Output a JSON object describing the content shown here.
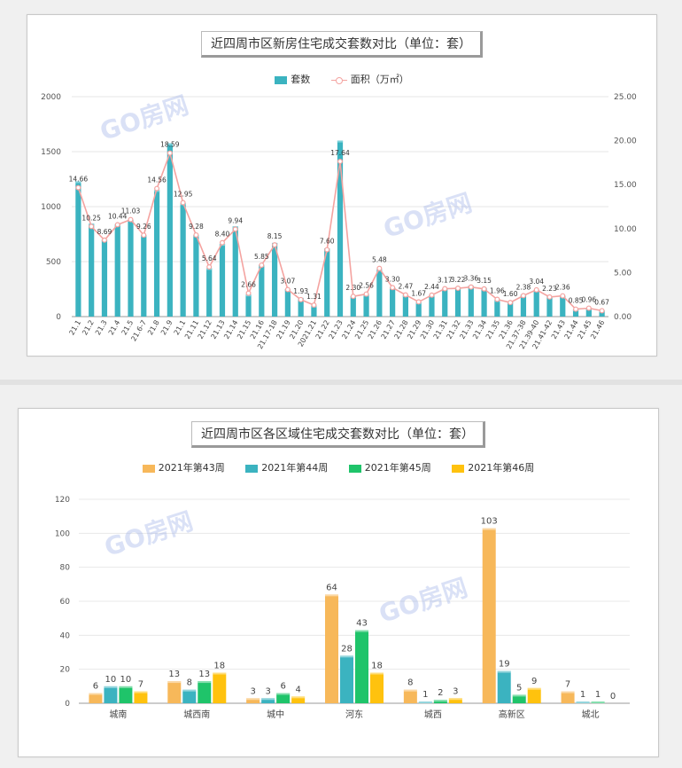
{
  "chart_data": [
    {
      "type": "bar",
      "title": "近四周市区新房住宅成交套数对比（单位：套）",
      "legend": [
        "套数",
        "面积（万㎡）"
      ],
      "categories": [
        "21.1",
        "21.2",
        "21.3",
        "21.4",
        "21.5",
        "21.6-7",
        "21.8",
        "21.9",
        "21.1",
        "21.11",
        "21.12",
        "21.13",
        "21.14",
        "21.15",
        "21.16",
        "21.17-18",
        "21.19",
        "21.20",
        "2021.21",
        "21.22",
        "21.23",
        "21.24",
        "21.25",
        "21.26",
        "21.27",
        "21.28",
        "21.29",
        "21.30",
        "21.31",
        "21.32",
        "21.33",
        "21.34",
        "21.35",
        "21.36",
        "21.37-38",
        "21.39-40",
        "21.41-42",
        "21.43",
        "21.44",
        "21.45",
        "21.46"
      ],
      "series": [
        {
          "name": "套数",
          "axis": "left",
          "kind": "bar",
          "values": [
            1230,
            845,
            700,
            840,
            880,
            740,
            1150,
            1575,
            1030,
            740,
            440,
            660,
            820,
            200,
            470,
            670,
            250,
            170,
            100,
            620,
            1600,
            185,
            200,
            430,
            265,
            195,
            130,
            195,
            255,
            265,
            280,
            260,
            150,
            135,
            200,
            240,
            185,
            190,
            65,
            75,
            55
          ]
        },
        {
          "name": "面积（万㎡）",
          "axis": "right",
          "kind": "line",
          "values": [
            14.66,
            10.25,
            8.69,
            10.44,
            11.03,
            9.26,
            14.56,
            18.59,
            12.95,
            9.28,
            5.64,
            8.4,
            9.94,
            2.66,
            5.85,
            8.15,
            3.07,
            1.93,
            1.31,
            7.6,
            17.64,
            2.3,
            2.56,
            5.48,
            3.3,
            2.47,
            1.67,
            2.44,
            3.17,
            3.22,
            3.36,
            3.15,
            1.96,
            1.6,
            2.38,
            3.04,
            2.23,
            2.36,
            0.85,
            0.96,
            0.67
          ]
        }
      ],
      "data_labels": [
        "14.66",
        "10.25",
        "8.69",
        "10.44",
        "11.03",
        "9.26",
        "14.56",
        "18.59",
        "12.95",
        "9.28",
        "5.64",
        "8.40",
        "9.94",
        "2.66",
        "5.85",
        "8.15",
        "3.07",
        "1.93",
        "1.31",
        "7.60",
        "17.64",
        "2.30",
        "2.56",
        "5.48",
        "3.30",
        "2.47",
        "1.67",
        "2.44",
        "3.17",
        "3.22",
        "3.36",
        "3.15",
        "1.96",
        "1.60",
        "2.38",
        "3.04",
        "2.23",
        "2.36",
        "0.85",
        "0.96",
        "0.67"
      ],
      "ylim_left": [
        0,
        2000
      ],
      "yticks_left": [
        "0",
        "500",
        "1000",
        "1500",
        "2000"
      ],
      "ylim_right": [
        0,
        25
      ],
      "yticks_right": [
        "0.00",
        "5.00",
        "10.00",
        "15.00",
        "20.00",
        "25.00"
      ],
      "colors": {
        "bar": "#3bb3c0",
        "line": "#f4a3a0"
      },
      "grid": true,
      "legend_position": "top"
    },
    {
      "type": "bar",
      "title": "近四周市区各区域住宅成交套数对比（单位：套）",
      "categories": [
        "城南",
        "城西南",
        "城中",
        "河东",
        "城西",
        "高新区",
        "城北"
      ],
      "series": [
        {
          "name": "2021年第43周",
          "color": "#f7b85a",
          "values": [
            6,
            13,
            3,
            64,
            8,
            103,
            7
          ]
        },
        {
          "name": "2021年第44周",
          "color": "#3bb3c0",
          "values": [
            10,
            8,
            3,
            28,
            1,
            19,
            1
          ]
        },
        {
          "name": "2021年第45周",
          "color": "#1fc46a",
          "values": [
            10,
            13,
            6,
            43,
            2,
            5,
            1
          ]
        },
        {
          "name": "2021年第46周",
          "color": "#ffc20e",
          "values": [
            7,
            18,
            4,
            18,
            3,
            9,
            0
          ]
        }
      ],
      "ylim": [
        0,
        120
      ],
      "yticks": [
        "0",
        "20",
        "40",
        "60",
        "80",
        "100",
        "120"
      ],
      "grid": true,
      "legend_position": "top"
    }
  ],
  "watermark": "GO房网"
}
